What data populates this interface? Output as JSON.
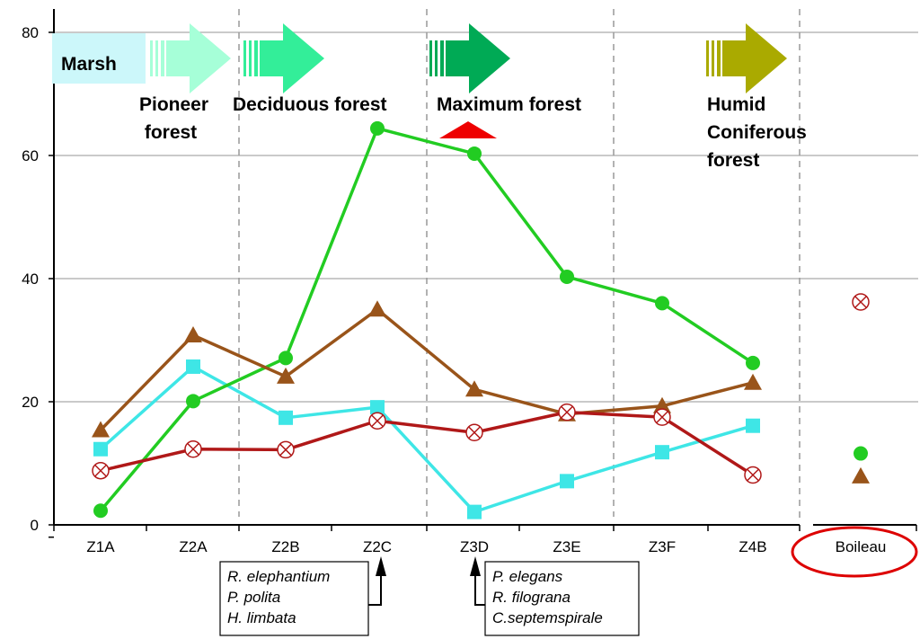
{
  "chart_data": {
    "type": "line",
    "categories": [
      "Z1A",
      "Z2A",
      "Z2B",
      "Z2C",
      "Z3D",
      "Z3E",
      "Z3F",
      "Z4B"
    ],
    "extra_category": "Boileau",
    "ylim": [
      0,
      80
    ],
    "yticks": [
      "0",
      "20",
      "40",
      "60",
      "80"
    ],
    "grid": true,
    "legend": "none",
    "series": [
      {
        "marker": "circle",
        "color": "#22cc22",
        "values": [
          2.3,
          20.1,
          27.1,
          64.4,
          60.3,
          40.3,
          36.0,
          26.3
        ],
        "boileau": 11.6
      },
      {
        "marker": "triangle",
        "color": "#99541a",
        "values": [
          15.4,
          30.8,
          24.1,
          35.0,
          22.0,
          18.0,
          19.3,
          23.1
        ],
        "boileau": 7.9
      },
      {
        "marker": "square",
        "color": "#3ee6e6",
        "values": [
          12.3,
          25.7,
          17.4,
          19.1,
          2.1,
          7.1,
          11.8,
          16.1
        ],
        "boileau": null
      },
      {
        "marker": "circle-x",
        "color": "#b01818",
        "values": [
          8.8,
          12.3,
          12.2,
          16.9,
          15.0,
          18.3,
          17.5,
          8.1
        ],
        "boileau": 36.2
      }
    ],
    "stages": [
      {
        "label": "Marsh"
      },
      {
        "label_lines": [
          "Pioneer",
          " forest"
        ]
      },
      {
        "label_lines": [
          "Deciduous forest"
        ]
      },
      {
        "label_lines": [
          "Maximum forest"
        ]
      },
      {
        "label_lines": [
          "Humid",
          "Coniferous",
          "forest"
        ]
      }
    ],
    "annotations": [
      {
        "category": "Z2C",
        "lines": [
          "R. elephantium",
          "P. polita",
          "H. limbata"
        ]
      },
      {
        "category": "Z3D",
        "lines": [
          "P. elegans",
          "R. filograna",
          "C.septemspirale"
        ]
      }
    ],
    "colors": {
      "marsh": "#ccf7fa",
      "arrow_pioneer": "#a6ffd8",
      "arrow_deciduous": "#33ee99",
      "arrow_maximum": "#00aa55",
      "arrow_humid": "#aaaa00",
      "peak_marker": "#ee0000",
      "boileau_circle": "#dd0000"
    }
  }
}
